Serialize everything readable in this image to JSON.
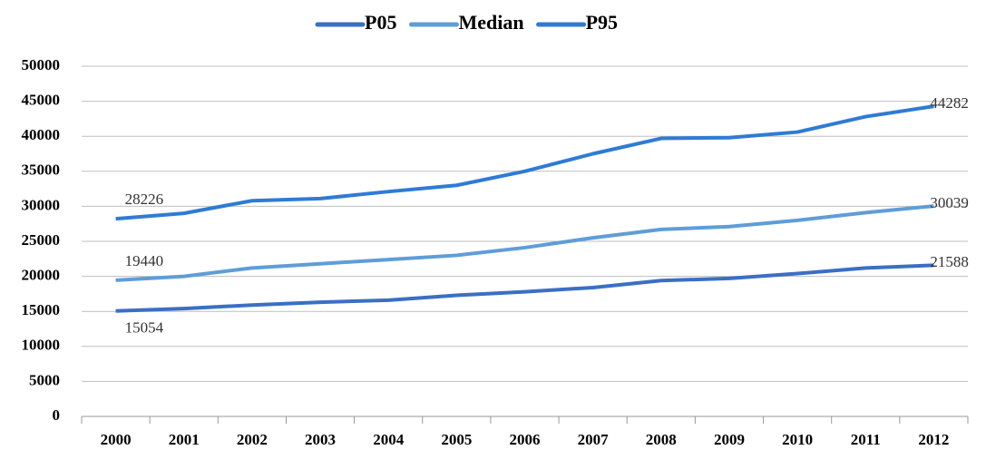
{
  "chart_data": {
    "type": "line",
    "categories": [
      "2000",
      "2001",
      "2002",
      "2003",
      "2004",
      "2005",
      "2006",
      "2007",
      "2008",
      "2009",
      "2010",
      "2011",
      "2012"
    ],
    "series": [
      {
        "name": "P05",
        "color": "#3b6fc4",
        "values": [
          15054,
          15400,
          15900,
          16300,
          16600,
          17300,
          17800,
          18400,
          19400,
          19700,
          20400,
          21200,
          21588
        ]
      },
      {
        "name": "Median",
        "color": "#5f9dd8",
        "values": [
          19440,
          20000,
          21200,
          21800,
          22400,
          23000,
          24100,
          25500,
          26700,
          27100,
          28000,
          29100,
          30039
        ]
      },
      {
        "name": "P95",
        "color": "#2f7bd4",
        "values": [
          28226,
          29000,
          30800,
          31100,
          32100,
          33000,
          35000,
          37500,
          39700,
          39800,
          40600,
          42800,
          44282
        ]
      }
    ],
    "data_labels": "ends",
    "ylim": [
      0,
      50000
    ],
    "yticks": [
      0,
      5000,
      10000,
      15000,
      20000,
      25000,
      30000,
      35000,
      40000,
      45000,
      50000
    ],
    "grid": true,
    "legend": "top"
  }
}
